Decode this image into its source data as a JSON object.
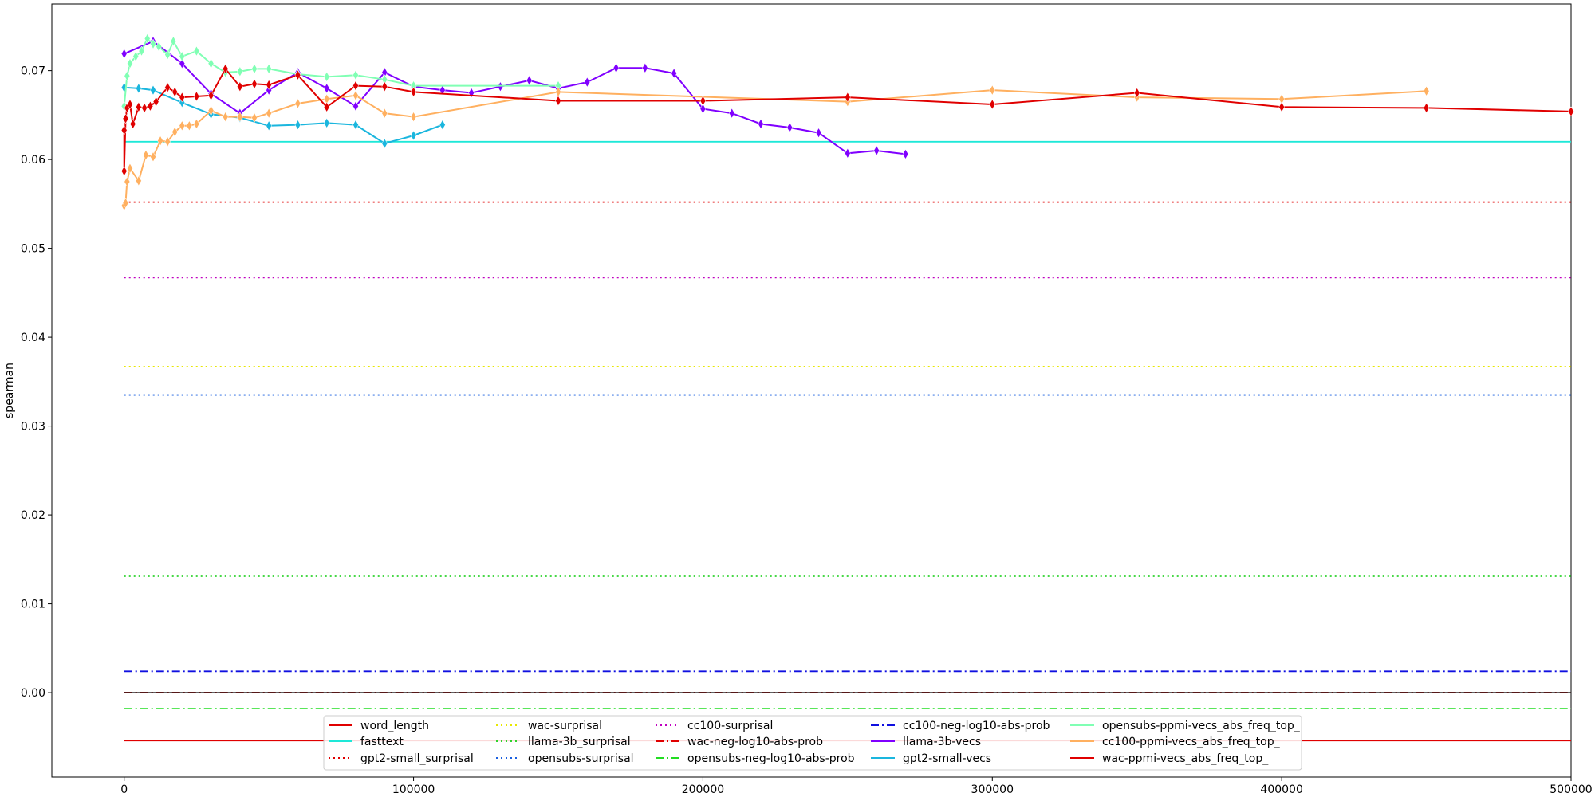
{
  "chart_data": {
    "type": "line",
    "title": "",
    "xlabel": "",
    "ylabel": "spearman",
    "xlim": [
      -25000,
      500000
    ],
    "ylim": [
      -0.0095,
      0.0775
    ],
    "xticks": [
      0,
      100000,
      200000,
      300000,
      400000,
      500000
    ],
    "xtick_labels": [
      "0",
      "100000",
      "200000",
      "300000",
      "400000",
      "500000"
    ],
    "yticks": [
      0.0,
      0.01,
      0.02,
      0.03,
      0.04,
      0.05,
      0.06,
      0.07
    ],
    "ytick_labels": [
      "0.00",
      "0.01",
      "0.02",
      "0.03",
      "0.04",
      "0.05",
      "0.06",
      "0.07"
    ],
    "grid": false,
    "legend_placement": "lower-center",
    "legend_columns": 5,
    "baselines": [
      {
        "name": "word_length",
        "value": -0.0054,
        "color": "#e00000",
        "dash": "solid"
      },
      {
        "name": "fasttext",
        "value": 0.062,
        "color": "#1ee8d8",
        "dash": "solid"
      },
      {
        "name": "gpt2-small_surprisal",
        "value": 0.0552,
        "color": "#e00000",
        "dash": "dotted"
      },
      {
        "name": "wac-surprisal",
        "value": 0.0367,
        "color": "#e8e800",
        "dash": "dotted"
      },
      {
        "name": "llama-3b_surprisal",
        "value": 0.0131,
        "color": "#2ed32e",
        "dash": "dotted"
      },
      {
        "name": "opensubs-surprisal",
        "value": 0.0335,
        "color": "#1a60e0",
        "dash": "dotted"
      },
      {
        "name": "cc100-surprisal",
        "value": 0.0467,
        "color": "#c000c0",
        "dash": "dotted"
      },
      {
        "name": "wac-neg-log10-abs-prob",
        "value": 0.0,
        "color": "#e00000",
        "dash": "dashdot"
      },
      {
        "name": "opensubs-neg-log10-abs-prob",
        "value": -0.0018,
        "color": "#22dd22",
        "dash": "dashdot"
      },
      {
        "name": "cc100-neg-log10-abs-prob",
        "value": 0.0024,
        "color": "#1010e0",
        "dash": "dashdot"
      }
    ],
    "extra_line": {
      "value": 0.0,
      "color": "#000000"
    },
    "series": [
      {
        "name": "llama-3b-vecs",
        "color": "#8000ff",
        "points": [
          [
            0,
            0.0719
          ],
          [
            10000,
            0.0733
          ],
          [
            20000,
            0.0708
          ],
          [
            30000,
            0.0674
          ],
          [
            40000,
            0.0652
          ],
          [
            50000,
            0.0678
          ],
          [
            60000,
            0.0698
          ],
          [
            70000,
            0.068
          ],
          [
            80000,
            0.066
          ],
          [
            90000,
            0.0698
          ],
          [
            100000,
            0.0682
          ],
          [
            110000,
            0.0678
          ],
          [
            120000,
            0.0675
          ],
          [
            130000,
            0.0682
          ],
          [
            140000,
            0.0689
          ],
          [
            150000,
            0.068
          ],
          [
            160000,
            0.0687
          ],
          [
            170000,
            0.0703
          ],
          [
            180000,
            0.0703
          ],
          [
            190000,
            0.0697
          ],
          [
            200000,
            0.0657
          ],
          [
            210000,
            0.0652
          ],
          [
            220000,
            0.064
          ],
          [
            230000,
            0.0636
          ],
          [
            240000,
            0.063
          ],
          [
            250000,
            0.0607
          ],
          [
            260000,
            0.061
          ],
          [
            270000,
            0.0606
          ]
        ]
      },
      {
        "name": "gpt2-small-vecs",
        "color": "#1ab6de",
        "points": [
          [
            0,
            0.0681
          ],
          [
            5000,
            0.068
          ],
          [
            10000,
            0.0678
          ],
          [
            20000,
            0.0664
          ],
          [
            30000,
            0.0651
          ],
          [
            40000,
            0.0647
          ],
          [
            50000,
            0.0638
          ],
          [
            60000,
            0.0639
          ],
          [
            70000,
            0.0641
          ],
          [
            80000,
            0.0639
          ],
          [
            90000,
            0.0618
          ],
          [
            100000,
            0.0627
          ],
          [
            110000,
            0.0639
          ]
        ]
      },
      {
        "name": "opensubs-ppmi-vecs_abs_freq_top_",
        "color": "#80ffb4",
        "points": [
          [
            0,
            0.066
          ],
          [
            1000,
            0.0694
          ],
          [
            2000,
            0.0708
          ],
          [
            4000,
            0.0716
          ],
          [
            6000,
            0.0722
          ],
          [
            8000,
            0.0736
          ],
          [
            10000,
            0.073
          ],
          [
            12000,
            0.0727
          ],
          [
            15000,
            0.0718
          ],
          [
            17000,
            0.0733
          ],
          [
            20000,
            0.0716
          ],
          [
            25000,
            0.0722
          ],
          [
            30000,
            0.0708
          ],
          [
            35000,
            0.0698
          ],
          [
            40000,
            0.0699
          ],
          [
            45000,
            0.0702
          ],
          [
            50000,
            0.0702
          ],
          [
            60000,
            0.0696
          ],
          [
            70000,
            0.0693
          ],
          [
            80000,
            0.0695
          ],
          [
            90000,
            0.069
          ],
          [
            100000,
            0.0683
          ],
          [
            150000,
            0.0683
          ]
        ]
      },
      {
        "name": "cc100-ppmi-vecs_abs_freq_top_",
        "color": "#ffb060",
        "points": [
          [
            0,
            0.0548
          ],
          [
            500,
            0.0551
          ],
          [
            1000,
            0.0575
          ],
          [
            2000,
            0.059
          ],
          [
            5000,
            0.0576
          ],
          [
            7500,
            0.0605
          ],
          [
            10000,
            0.0603
          ],
          [
            12500,
            0.0621
          ],
          [
            15000,
            0.062
          ],
          [
            17500,
            0.0631
          ],
          [
            20000,
            0.0638
          ],
          [
            22500,
            0.0638
          ],
          [
            25000,
            0.064
          ],
          [
            30000,
            0.0655
          ],
          [
            35000,
            0.0648
          ],
          [
            40000,
            0.0648
          ],
          [
            45000,
            0.0647
          ],
          [
            50000,
            0.0652
          ],
          [
            60000,
            0.0663
          ],
          [
            70000,
            0.0668
          ],
          [
            80000,
            0.0672
          ],
          [
            90000,
            0.0652
          ],
          [
            100000,
            0.0648
          ],
          [
            150000,
            0.0676
          ],
          [
            250000,
            0.0665
          ],
          [
            300000,
            0.0678
          ],
          [
            350000,
            0.067
          ],
          [
            400000,
            0.0668
          ],
          [
            450000,
            0.0677
          ]
        ]
      },
      {
        "name": "wac-ppmi-vecs_abs_freq_top_",
        "color": "#e00000",
        "points": [
          [
            0,
            0.0633
          ],
          [
            0,
            0.0587
          ],
          [
            500,
            0.0646
          ],
          [
            1000,
            0.0658
          ],
          [
            2000,
            0.0662
          ],
          [
            3000,
            0.064
          ],
          [
            5000,
            0.0659
          ],
          [
            7000,
            0.0658
          ],
          [
            9000,
            0.066
          ],
          [
            11000,
            0.0665
          ],
          [
            15000,
            0.0681
          ],
          [
            17500,
            0.0676
          ],
          [
            20000,
            0.067
          ],
          [
            25000,
            0.0671
          ],
          [
            30000,
            0.0672
          ],
          [
            35000,
            0.0702
          ],
          [
            40000,
            0.0682
          ],
          [
            45000,
            0.0685
          ],
          [
            50000,
            0.0684
          ],
          [
            60000,
            0.0695
          ],
          [
            70000,
            0.0659
          ],
          [
            80000,
            0.0683
          ],
          [
            90000,
            0.0682
          ],
          [
            100000,
            0.0676
          ],
          [
            150000,
            0.0666
          ],
          [
            200000,
            0.0666
          ],
          [
            250000,
            0.067
          ],
          [
            300000,
            0.0662
          ],
          [
            350000,
            0.0675
          ],
          [
            400000,
            0.0659
          ],
          [
            450000,
            0.0658
          ],
          [
            500000,
            0.0654
          ]
        ]
      }
    ],
    "legend": [
      {
        "label": "word_length",
        "color": "#e00000",
        "dash": "solid"
      },
      {
        "label": "fasttext",
        "color": "#1ee8d8",
        "dash": "solid"
      },
      {
        "label": "gpt2-small_surprisal",
        "color": "#e00000",
        "dash": "dotted"
      },
      {
        "label": "wac-surprisal",
        "color": "#e8e800",
        "dash": "dotted"
      },
      {
        "label": "llama-3b_surprisal",
        "color": "#2ed32e",
        "dash": "dotted"
      },
      {
        "label": "opensubs-surprisal",
        "color": "#1a60e0",
        "dash": "dotted"
      },
      {
        "label": "cc100-surprisal",
        "color": "#c000c0",
        "dash": "dotted"
      },
      {
        "label": "wac-neg-log10-abs-prob",
        "color": "#e00000",
        "dash": "dashdot"
      },
      {
        "label": "opensubs-neg-log10-abs-prob",
        "color": "#22dd22",
        "dash": "dashdot"
      },
      {
        "label": "cc100-neg-log10-abs-prob",
        "color": "#1010e0",
        "dash": "dashdot"
      },
      {
        "label": "llama-3b-vecs",
        "color": "#8000ff",
        "dash": "solid"
      },
      {
        "label": "gpt2-small-vecs",
        "color": "#1ab6de",
        "dash": "solid"
      },
      {
        "label": "opensubs-ppmi-vecs_abs_freq_top_",
        "color": "#80ffb4",
        "dash": "solid"
      },
      {
        "label": "cc100-ppmi-vecs_abs_freq_top_",
        "color": "#ffb060",
        "dash": "solid"
      },
      {
        "label": "wac-ppmi-vecs_abs_freq_top_",
        "color": "#e00000",
        "dash": "solid"
      }
    ]
  }
}
